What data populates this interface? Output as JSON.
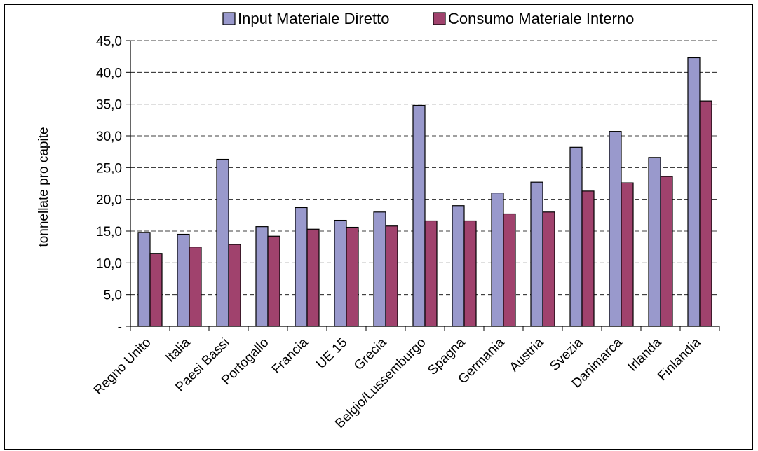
{
  "chart_data": {
    "type": "bar",
    "ylabel": "tonnellate pro capite",
    "xlabel": "",
    "ylim": [
      0,
      45
    ],
    "y_ticks": [
      0,
      5,
      10,
      15,
      20,
      25,
      30,
      35,
      40,
      45
    ],
    "y_tick_labels": [
      "-",
      "5,0",
      "10,0",
      "15,0",
      "20,0",
      "25,0",
      "30,0",
      "35,0",
      "40,0",
      "45,0"
    ],
    "grid": "horizontal dashed",
    "legend_position": "top",
    "categories": [
      "Regno Unito",
      "Italia",
      "Paesi Bassi",
      "Portogallo",
      "Francia",
      "UE 15",
      "Grecia",
      "Belgio/Lussemburgo",
      "Spagna",
      "Germania",
      "Austria",
      "Svezia",
      "Danimarca",
      "Irlanda",
      "Finlandia"
    ],
    "series": [
      {
        "name": "Input Materiale Diretto",
        "color": "#9999cc",
        "values": [
          14.8,
          14.5,
          26.3,
          15.7,
          18.7,
          16.7,
          18.0,
          34.8,
          19.0,
          21.0,
          22.7,
          28.2,
          30.7,
          26.6,
          42.3
        ]
      },
      {
        "name": "Consumo Materiale Interno",
        "color": "#a0426d",
        "values": [
          11.5,
          12.5,
          12.9,
          14.2,
          15.3,
          15.6,
          15.8,
          16.6,
          16.6,
          17.7,
          18.0,
          21.3,
          22.6,
          23.6,
          35.5
        ]
      }
    ]
  }
}
